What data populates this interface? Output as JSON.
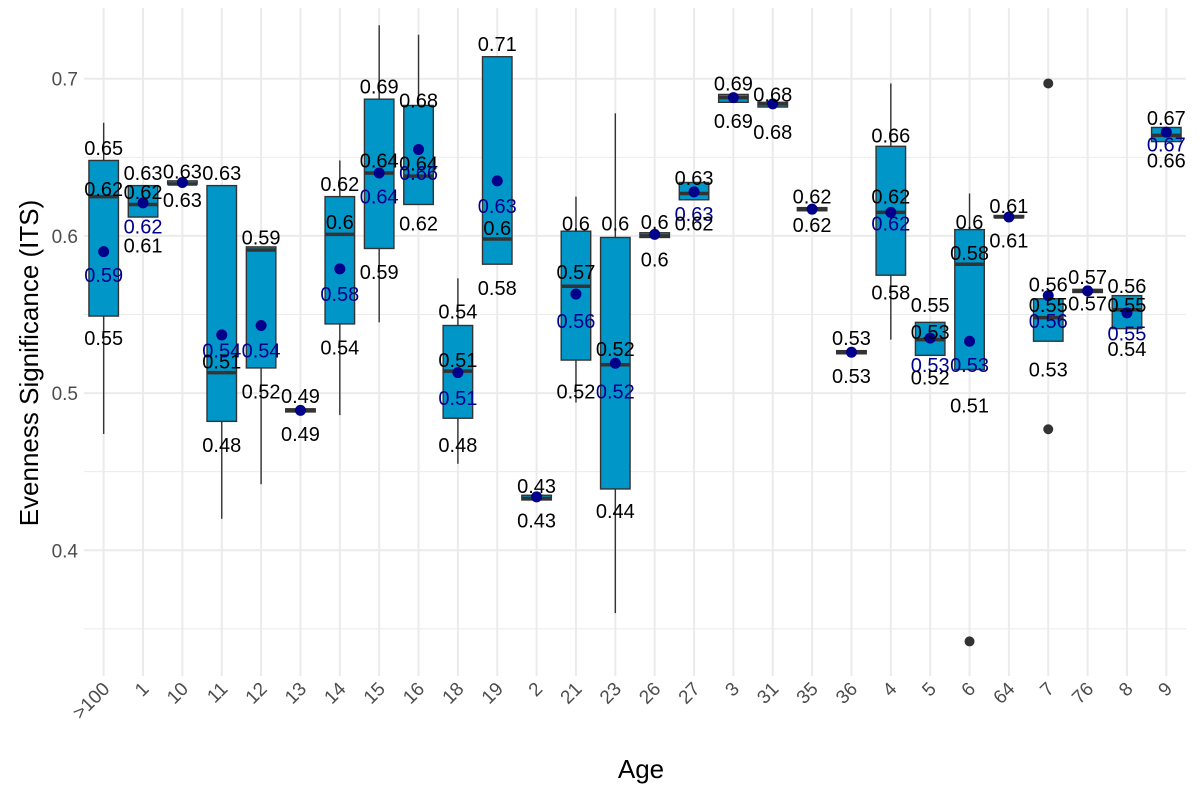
{
  "chart_data": {
    "type": "box",
    "title": "",
    "xlabel": "Age",
    "ylabel": "Evenness Significance (ITS)",
    "ylim": [
      0.32,
      0.745
    ],
    "yticks": [
      0.4,
      0.5,
      0.6,
      0.7
    ],
    "grid": true,
    "colors": {
      "box_fill": "#0096C7",
      "mean_point": "#00008B",
      "median": "#333333",
      "outlier": "#333333",
      "grid": "#ebebeb"
    },
    "categories": [
      ">100",
      "1",
      "10",
      "11",
      "12",
      "13",
      "14",
      "15",
      "16",
      "18",
      "19",
      "2",
      "21",
      "23",
      "26",
      "27",
      "3",
      "31",
      "35",
      "36",
      "4",
      "5",
      "6",
      "64",
      "7",
      "76",
      "8",
      "9"
    ],
    "boxes": [
      {
        "q1": 0.549,
        "median": 0.625,
        "q3": 0.648,
        "lo": 0.474,
        "hi": 0.672,
        "mean": 0.59,
        "outliers": []
      },
      {
        "q1": 0.612,
        "median": 0.62,
        "q3": 0.632,
        "lo": 0.612,
        "hi": 0.632,
        "mean": 0.621,
        "outliers": []
      },
      {
        "q1": 0.633,
        "median": 0.633,
        "q3": 0.635,
        "lo": 0.633,
        "hi": 0.635,
        "mean": 0.634,
        "outliers": []
      },
      {
        "q1": 0.482,
        "median": 0.513,
        "q3": 0.632,
        "lo": 0.42,
        "hi": 0.632,
        "mean": 0.537,
        "outliers": []
      },
      {
        "q1": 0.516,
        "median": 0.591,
        "q3": 0.593,
        "lo": 0.442,
        "hi": 0.593,
        "mean": 0.543,
        "outliers": []
      },
      {
        "q1": 0.488,
        "median": 0.489,
        "q3": 0.49,
        "lo": 0.488,
        "hi": 0.49,
        "mean": 0.489,
        "outliers": []
      },
      {
        "q1": 0.544,
        "median": 0.601,
        "q3": 0.625,
        "lo": 0.486,
        "hi": 0.648,
        "mean": 0.579,
        "outliers": []
      },
      {
        "q1": 0.592,
        "median": 0.64,
        "q3": 0.687,
        "lo": 0.545,
        "hi": 0.734,
        "mean": 0.64,
        "outliers": []
      },
      {
        "q1": 0.62,
        "median": 0.638,
        "q3": 0.683,
        "lo": 0.62,
        "hi": 0.728,
        "mean": 0.655,
        "outliers": []
      },
      {
        "q1": 0.484,
        "median": 0.514,
        "q3": 0.543,
        "lo": 0.455,
        "hi": 0.573,
        "mean": 0.513,
        "outliers": []
      },
      {
        "q1": 0.582,
        "median": 0.598,
        "q3": 0.714,
        "lo": 0.582,
        "hi": 0.714,
        "mean": 0.635,
        "outliers": []
      },
      {
        "q1": 0.432,
        "median": 0.433,
        "q3": 0.435,
        "lo": 0.432,
        "hi": 0.435,
        "mean": 0.434,
        "outliers": []
      },
      {
        "q1": 0.521,
        "median": 0.568,
        "q3": 0.603,
        "lo": 0.494,
        "hi": 0.625,
        "mean": 0.563,
        "outliers": []
      },
      {
        "q1": 0.439,
        "median": 0.518,
        "q3": 0.599,
        "lo": 0.36,
        "hi": 0.678,
        "mean": 0.519,
        "outliers": []
      },
      {
        "q1": 0.599,
        "median": 0.6,
        "q3": 0.602,
        "lo": 0.599,
        "hi": 0.602,
        "mean": 0.601,
        "outliers": []
      },
      {
        "q1": 0.623,
        "median": 0.627,
        "q3": 0.634,
        "lo": 0.623,
        "hi": 0.634,
        "mean": 0.628,
        "outliers": []
      },
      {
        "q1": 0.685,
        "median": 0.688,
        "q3": 0.69,
        "lo": 0.685,
        "hi": 0.69,
        "mean": 0.688,
        "outliers": []
      },
      {
        "q1": 0.682,
        "median": 0.684,
        "q3": 0.685,
        "lo": 0.682,
        "hi": 0.685,
        "mean": 0.684,
        "outliers": []
      },
      {
        "q1": 0.616,
        "median": 0.617,
        "q3": 0.618,
        "lo": 0.616,
        "hi": 0.618,
        "mean": 0.617,
        "outliers": []
      },
      {
        "q1": 0.525,
        "median": 0.526,
        "q3": 0.527,
        "lo": 0.525,
        "hi": 0.527,
        "mean": 0.526,
        "outliers": []
      },
      {
        "q1": 0.575,
        "median": 0.615,
        "q3": 0.657,
        "lo": 0.534,
        "hi": 0.697,
        "mean": 0.615,
        "outliers": []
      },
      {
        "q1": 0.524,
        "median": 0.534,
        "q3": 0.545,
        "lo": 0.524,
        "hi": 0.545,
        "mean": 0.535,
        "outliers": []
      },
      {
        "q1": 0.515,
        "median": 0.582,
        "q3": 0.604,
        "lo": 0.515,
        "hi": 0.627,
        "mean": 0.533,
        "outliers": [
          0.342
        ]
      },
      {
        "q1": 0.612,
        "median": 0.612,
        "q3": 0.613,
        "lo": 0.612,
        "hi": 0.613,
        "mean": 0.612,
        "outliers": []
      },
      {
        "q1": 0.533,
        "median": 0.548,
        "q3": 0.56,
        "lo": 0.533,
        "hi": 0.56,
        "mean": 0.562,
        "outliers": [
          0.697,
          0.477
        ]
      },
      {
        "q1": 0.564,
        "median": 0.565,
        "q3": 0.566,
        "lo": 0.564,
        "hi": 0.566,
        "mean": 0.565,
        "outliers": []
      },
      {
        "q1": 0.541,
        "median": 0.553,
        "q3": 0.562,
        "lo": 0.541,
        "hi": 0.562,
        "mean": 0.551,
        "outliers": []
      },
      {
        "q1": 0.66,
        "median": 0.664,
        "q3": 0.669,
        "lo": 0.66,
        "hi": 0.669,
        "mean": 0.666,
        "outliers": []
      }
    ],
    "annotations": [
      {
        "cat": 0,
        "text": "0.65",
        "y": 0.656,
        "color": "black"
      },
      {
        "cat": 0,
        "text": "0.62",
        "y": 0.63,
        "color": "black"
      },
      {
        "cat": 0,
        "text": "0.59",
        "y": 0.575,
        "color": "navy"
      },
      {
        "cat": 0,
        "text": "0.55",
        "y": 0.535,
        "color": "black"
      },
      {
        "cat": 1,
        "text": "0.63",
        "y": 0.64,
        "color": "black"
      },
      {
        "cat": 1,
        "text": "0.62",
        "y": 0.628,
        "color": "black"
      },
      {
        "cat": 1,
        "text": "0.62",
        "y": 0.606,
        "color": "navy"
      },
      {
        "cat": 1,
        "text": "0.61",
        "y": 0.594,
        "color": "black"
      },
      {
        "cat": 2,
        "text": "0.63",
        "y": 0.641,
        "color": "black"
      },
      {
        "cat": 2,
        "text": "0.63",
        "y": 0.623,
        "color": "black"
      },
      {
        "cat": 3,
        "text": "0.63",
        "y": 0.64,
        "color": "black"
      },
      {
        "cat": 3,
        "text": "0.54",
        "y": 0.527,
        "color": "navy"
      },
      {
        "cat": 3,
        "text": "0.51",
        "y": 0.52,
        "color": "black"
      },
      {
        "cat": 3,
        "text": "0.48",
        "y": 0.467,
        "color": "black"
      },
      {
        "cat": 4,
        "text": "0.59",
        "y": 0.599,
        "color": "black"
      },
      {
        "cat": 4,
        "text": "0.54",
        "y": 0.527,
        "color": "navy"
      },
      {
        "cat": 4,
        "text": "0.52",
        "y": 0.501,
        "color": "black"
      },
      {
        "cat": 5,
        "text": "0.49",
        "y": 0.498,
        "color": "black"
      },
      {
        "cat": 5,
        "text": "0.49",
        "y": 0.474,
        "color": "black"
      },
      {
        "cat": 6,
        "text": "0.62",
        "y": 0.633,
        "color": "black"
      },
      {
        "cat": 6,
        "text": "0.6",
        "y": 0.609,
        "color": "black"
      },
      {
        "cat": 6,
        "text": "0.58",
        "y": 0.563,
        "color": "navy"
      },
      {
        "cat": 6,
        "text": "0.54",
        "y": 0.529,
        "color": "black"
      },
      {
        "cat": 7,
        "text": "0.69",
        "y": 0.695,
        "color": "black"
      },
      {
        "cat": 7,
        "text": "0.64",
        "y": 0.648,
        "color": "black"
      },
      {
        "cat": 7,
        "text": "0.64",
        "y": 0.625,
        "color": "navy"
      },
      {
        "cat": 7,
        "text": "0.59",
        "y": 0.577,
        "color": "black"
      },
      {
        "cat": 8,
        "text": "0.68",
        "y": 0.686,
        "color": "black"
      },
      {
        "cat": 8,
        "text": "0.64",
        "y": 0.646,
        "color": "black"
      },
      {
        "cat": 8,
        "text": "0.66",
        "y": 0.64,
        "color": "navy"
      },
      {
        "cat": 8,
        "text": "0.62",
        "y": 0.608,
        "color": "black"
      },
      {
        "cat": 9,
        "text": "0.54",
        "y": 0.552,
        "color": "black"
      },
      {
        "cat": 9,
        "text": "0.51",
        "y": 0.521,
        "color": "black"
      },
      {
        "cat": 9,
        "text": "0.51",
        "y": 0.497,
        "color": "navy"
      },
      {
        "cat": 9,
        "text": "0.48",
        "y": 0.467,
        "color": "black"
      },
      {
        "cat": 10,
        "text": "0.71",
        "y": 0.722,
        "color": "black"
      },
      {
        "cat": 10,
        "text": "0.63",
        "y": 0.619,
        "color": "navy"
      },
      {
        "cat": 10,
        "text": "0.6",
        "y": 0.605,
        "color": "black"
      },
      {
        "cat": 10,
        "text": "0.58",
        "y": 0.567,
        "color": "black"
      },
      {
        "cat": 11,
        "text": "0.43",
        "y": 0.441,
        "color": "black"
      },
      {
        "cat": 11,
        "text": "0.43",
        "y": 0.419,
        "color": "black"
      },
      {
        "cat": 12,
        "text": "0.6",
        "y": 0.608,
        "color": "black"
      },
      {
        "cat": 12,
        "text": "0.57",
        "y": 0.577,
        "color": "black"
      },
      {
        "cat": 12,
        "text": "0.56",
        "y": 0.546,
        "color": "navy"
      },
      {
        "cat": 12,
        "text": "0.52",
        "y": 0.501,
        "color": "black"
      },
      {
        "cat": 13,
        "text": "0.6",
        "y": 0.608,
        "color": "black"
      },
      {
        "cat": 13,
        "text": "0.52",
        "y": 0.528,
        "color": "black"
      },
      {
        "cat": 13,
        "text": "0.52",
        "y": 0.501,
        "color": "navy"
      },
      {
        "cat": 13,
        "text": "0.44",
        "y": 0.425,
        "color": "black"
      },
      {
        "cat": 14,
        "text": "0.6",
        "y": 0.609,
        "color": "black"
      },
      {
        "cat": 14,
        "text": "0.6",
        "y": 0.585,
        "color": "black"
      },
      {
        "cat": 15,
        "text": "0.63",
        "y": 0.637,
        "color": "black"
      },
      {
        "cat": 15,
        "text": "0.63",
        "y": 0.614,
        "color": "navy"
      },
      {
        "cat": 15,
        "text": "0.62",
        "y": 0.608,
        "color": "black"
      },
      {
        "cat": 16,
        "text": "0.69",
        "y": 0.697,
        "color": "black"
      },
      {
        "cat": 16,
        "text": "0.69",
        "y": 0.673,
        "color": "black"
      },
      {
        "cat": 17,
        "text": "0.68",
        "y": 0.69,
        "color": "black"
      },
      {
        "cat": 17,
        "text": "0.68",
        "y": 0.666,
        "color": "black"
      },
      {
        "cat": 18,
        "text": "0.62",
        "y": 0.625,
        "color": "black"
      },
      {
        "cat": 18,
        "text": "0.62",
        "y": 0.607,
        "color": "black"
      },
      {
        "cat": 19,
        "text": "0.53",
        "y": 0.535,
        "color": "black"
      },
      {
        "cat": 19,
        "text": "0.53",
        "y": 0.511,
        "color": "black"
      },
      {
        "cat": 20,
        "text": "0.66",
        "y": 0.664,
        "color": "black"
      },
      {
        "cat": 20,
        "text": "0.62",
        "y": 0.625,
        "color": "black"
      },
      {
        "cat": 20,
        "text": "0.62",
        "y": 0.608,
        "color": "navy"
      },
      {
        "cat": 20,
        "text": "0.58",
        "y": 0.564,
        "color": "black"
      },
      {
        "cat": 21,
        "text": "0.55",
        "y": 0.556,
        "color": "black"
      },
      {
        "cat": 21,
        "text": "0.53",
        "y": 0.539,
        "color": "black"
      },
      {
        "cat": 21,
        "text": "0.53",
        "y": 0.518,
        "color": "navy"
      },
      {
        "cat": 21,
        "text": "0.52",
        "y": 0.51,
        "color": "black"
      },
      {
        "cat": 22,
        "text": "0.6",
        "y": 0.609,
        "color": "black"
      },
      {
        "cat": 22,
        "text": "0.58",
        "y": 0.589,
        "color": "black"
      },
      {
        "cat": 22,
        "text": "0.53",
        "y": 0.518,
        "color": "navy"
      },
      {
        "cat": 22,
        "text": "0.51",
        "y": 0.492,
        "color": "black"
      },
      {
        "cat": 23,
        "text": "0.61",
        "y": 0.619,
        "color": "black"
      },
      {
        "cat": 23,
        "text": "0.61",
        "y": 0.597,
        "color": "black"
      },
      {
        "cat": 24,
        "text": "0.56",
        "y": 0.569,
        "color": "black"
      },
      {
        "cat": 24,
        "text": "0.55",
        "y": 0.556,
        "color": "black"
      },
      {
        "cat": 24,
        "text": "0.56",
        "y": 0.546,
        "color": "navy"
      },
      {
        "cat": 24,
        "text": "0.53",
        "y": 0.515,
        "color": "black"
      },
      {
        "cat": 25,
        "text": "0.57",
        "y": 0.574,
        "color": "black"
      },
      {
        "cat": 25,
        "text": "0.57",
        "y": 0.557,
        "color": "black"
      },
      {
        "cat": 26,
        "text": "0.56",
        "y": 0.568,
        "color": "black"
      },
      {
        "cat": 26,
        "text": "0.55",
        "y": 0.556,
        "color": "black"
      },
      {
        "cat": 26,
        "text": "0.55",
        "y": 0.538,
        "color": "navy"
      },
      {
        "cat": 26,
        "text": "0.54",
        "y": 0.528,
        "color": "black"
      },
      {
        "cat": 27,
        "text": "0.67",
        "y": 0.675,
        "color": "black"
      },
      {
        "cat": 27,
        "text": "0.67",
        "y": 0.658,
        "color": "navy"
      },
      {
        "cat": 27,
        "text": "0.66",
        "y": 0.648,
        "color": "black"
      }
    ]
  }
}
